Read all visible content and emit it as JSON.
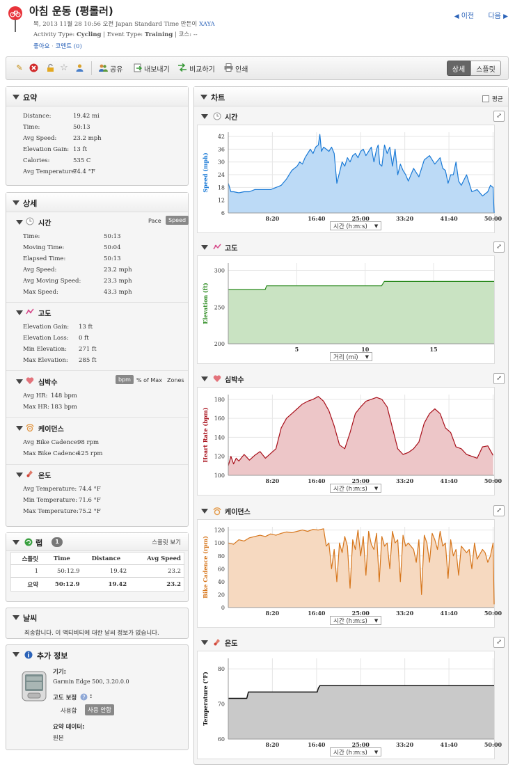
{
  "header": {
    "title": "아침 운동 (평롤러)",
    "date_line": "목, 2013 11월 28 10:56 오전 Japan Standard Time 만든이",
    "author": "XAYA",
    "activity_type_label": "Activity Type:",
    "activity_type": "Cycling",
    "event_type_label": "| Event Type:",
    "event_type": "Training",
    "course_label": "| 코스: --",
    "like": "좋아요",
    "comments": "코멘트 (0)",
    "prev": "이전",
    "next": "다음"
  },
  "toolbar": {
    "share": "공유",
    "export": "내보내기",
    "compare": "비교하기",
    "print": "인쇄",
    "view_detail": "상세",
    "view_splits": "스플릿"
  },
  "summary": {
    "title": "요약",
    "rows": [
      {
        "label": "Distance:",
        "value": "19.42 mi"
      },
      {
        "label": "Time:",
        "value": "50:13"
      },
      {
        "label": "Avg Speed:",
        "value": "23.2 mph"
      },
      {
        "label": "Elevation Gain:",
        "value": "13 ft"
      },
      {
        "label": "Calories:",
        "value": "535 C"
      },
      {
        "label": "Avg Temperature:",
        "value": "74.4 °F"
      }
    ]
  },
  "details": {
    "title": "상세",
    "time": {
      "title": "시간",
      "pace": "Pace",
      "speed": "Speed",
      "rows": [
        {
          "label": "Time:",
          "value": "50:13"
        },
        {
          "label": "Moving Time:",
          "value": "50:04"
        },
        {
          "label": "Elapsed Time:",
          "value": "50:13"
        },
        {
          "label": "Avg Speed:",
          "value": "23.2 mph"
        },
        {
          "label": "Avg Moving Speed:",
          "value": "23.3 mph"
        },
        {
          "label": "Max Speed:",
          "value": "43.3 mph"
        }
      ]
    },
    "elevation": {
      "title": "고도",
      "rows": [
        {
          "label": "Elevation Gain:",
          "value": "13 ft"
        },
        {
          "label": "Elevation Loss:",
          "value": "0 ft"
        },
        {
          "label": "Min Elevation:",
          "value": "271 ft"
        },
        {
          "label": "Max Elevation:",
          "value": "285 ft"
        }
      ]
    },
    "heart": {
      "title": "심박수",
      "bpm": "bpm",
      "pct_max": "% of Max",
      "zones": "Zones",
      "rows": [
        {
          "label": "Avg HR:",
          "value": "148 bpm"
        },
        {
          "label": "Max HR:",
          "value": "183 bpm"
        }
      ]
    },
    "cadence": {
      "title": "케이던스",
      "rows": [
        {
          "label": "Avg Bike Cadence:",
          "value": "98 rpm"
        },
        {
          "label": "Max Bike Cadence:",
          "value": "125 rpm"
        }
      ]
    },
    "temperature": {
      "title": "온도",
      "rows": [
        {
          "label": "Avg Temperature:",
          "value": "74.4 °F"
        },
        {
          "label": "Min Temperature:",
          "value": "71.6 °F"
        },
        {
          "label": "Max Temperature:",
          "value": "75.2 °F"
        }
      ]
    }
  },
  "laps": {
    "title": "랩",
    "count": "1",
    "split_view": "스플릿 보기",
    "columns": [
      "스플릿",
      "Time",
      "Distance",
      "Avg Speed"
    ],
    "rows": [
      [
        "1",
        "50:12.9",
        "19.42",
        "23.2"
      ]
    ],
    "summary": [
      "요약",
      "50:12.9",
      "19.42",
      "23.2"
    ]
  },
  "weather": {
    "title": "날씨",
    "message": "죄송합니다. 이 액티비티에 대한 날씨 정보가 없습니다."
  },
  "extra": {
    "title": "추가 정보",
    "device_label": "기기:",
    "device": "Garmin Edge 500, 3.20.0.0",
    "elev_corr_label": "고도 보정",
    "colon": ":",
    "use": "사용함",
    "not_use": "사용 안함",
    "summary_data_label": "요약 데이터:",
    "summary_data": "원본"
  },
  "charts": {
    "title": "차트",
    "average": "평균",
    "colors": {
      "speed": "#1a7ad6",
      "elevation": "#2a8a1e",
      "heart": "#a80f1a",
      "cadence": "#d6751a",
      "temperature": "#111111"
    }
  },
  "chart_data": [
    {
      "type": "area",
      "title": "시간",
      "ylabel": "Speed (mph)",
      "x_selector": "시간 (h:m:s)",
      "xticks": [
        "8:20",
        "16:40",
        "25:00",
        "33:20",
        "41:40",
        "50:00"
      ],
      "xtick_values": [
        8.33,
        16.67,
        25,
        33.33,
        41.67,
        50
      ],
      "xlim": [
        0,
        50.2
      ],
      "yticks": [
        6,
        12,
        18,
        24,
        30,
        36,
        42
      ],
      "ylim": [
        6,
        44
      ],
      "x": [
        0,
        0.5,
        1,
        2,
        3,
        4,
        5,
        6,
        7,
        8,
        9,
        10,
        11,
        12,
        13,
        13.5,
        14,
        14.5,
        15,
        15.5,
        16,
        16.5,
        17,
        17.3,
        17.6,
        18,
        18.5,
        19,
        19.5,
        20,
        20.5,
        21,
        21.5,
        22,
        22.5,
        23,
        23.5,
        24,
        24.5,
        25,
        25.5,
        26,
        26.5,
        27,
        27.5,
        28,
        28.3,
        28.6,
        29,
        29.5,
        30,
        30.5,
        31,
        31.5,
        32,
        32.5,
        33,
        33.5,
        34,
        35,
        36,
        37,
        38,
        39,
        40,
        40.5,
        41,
        41.5,
        42,
        42.5,
        43,
        43.5,
        44,
        45,
        46,
        47,
        48,
        49,
        49.5,
        50,
        50.2
      ],
      "values": [
        20,
        16,
        16,
        15.5,
        16,
        16,
        17,
        17,
        17,
        17,
        18,
        19,
        22,
        26,
        28,
        30,
        29,
        32,
        34,
        36,
        34,
        37,
        38,
        43,
        35,
        37,
        36,
        35,
        37,
        34,
        20,
        25,
        30,
        28,
        32,
        30,
        33,
        34,
        32,
        35,
        36,
        33,
        35,
        37,
        30,
        36,
        38,
        29,
        28,
        38,
        34,
        37,
        28,
        36,
        24,
        29,
        26,
        24,
        21,
        27,
        23,
        31,
        33,
        29,
        32,
        27,
        26,
        20,
        24,
        24,
        30,
        21,
        19,
        24,
        16,
        17,
        14,
        16,
        19,
        18,
        6
      ]
    },
    {
      "type": "area",
      "title": "고도",
      "ylabel": "Elevation (ft)",
      "x_selector": "거리 (mi)",
      "xticks": [
        "5",
        "10",
        "15"
      ],
      "xtick_values": [
        5,
        10,
        15
      ],
      "xlim": [
        0,
        19.42
      ],
      "yticks": [
        200,
        250,
        300
      ],
      "ylim": [
        200,
        310
      ],
      "x": [
        0,
        2.7,
        2.8,
        11.2,
        11.4,
        19.42
      ],
      "values": [
        274,
        274,
        279,
        279,
        285,
        285
      ]
    },
    {
      "type": "area",
      "title": "심박수",
      "ylabel": "Heart Rate (bpm)",
      "x_selector": "시간 (h:m:s)",
      "xticks": [
        "8:20",
        "16:40",
        "25:00",
        "33:20",
        "41:40",
        "50:00"
      ],
      "xtick_values": [
        8.33,
        16.67,
        25,
        33.33,
        41.67,
        50
      ],
      "xlim": [
        0,
        50.2
      ],
      "yticks": [
        100,
        120,
        140,
        160,
        180
      ],
      "ylim": [
        100,
        185
      ],
      "x": [
        0,
        0.5,
        1,
        1.5,
        2,
        3,
        4,
        5,
        6,
        7,
        8,
        9,
        10,
        11,
        12,
        13,
        14,
        15,
        16,
        17,
        18,
        19,
        20,
        21,
        22,
        23,
        24,
        25,
        26,
        27,
        28,
        29,
        30,
        31,
        32,
        33,
        34,
        35,
        36,
        37,
        38,
        39,
        40,
        41,
        42,
        43,
        44,
        45,
        46,
        47,
        48,
        49,
        50
      ],
      "values": [
        110,
        120,
        112,
        118,
        115,
        122,
        116,
        121,
        125,
        118,
        123,
        128,
        150,
        160,
        165,
        170,
        175,
        178,
        180,
        183,
        178,
        168,
        152,
        132,
        128,
        145,
        165,
        172,
        178,
        180,
        182,
        180,
        172,
        150,
        128,
        122,
        124,
        128,
        135,
        155,
        165,
        170,
        165,
        150,
        145,
        130,
        128,
        122,
        120,
        118,
        130,
        131,
        121
      ]
    },
    {
      "type": "area",
      "title": "케이던스",
      "ylabel": "Bike Cadence (rpm)",
      "x_selector": "시간 (h:m:s)",
      "xticks": [
        "8:20",
        "16:40",
        "25:00",
        "33:20",
        "41:40",
        "50:00"
      ],
      "xtick_values": [
        8.33,
        16.67,
        25,
        33.33,
        41.67,
        50
      ],
      "xlim": [
        0,
        50.2
      ],
      "yticks": [
        0,
        20,
        40,
        60,
        80,
        100,
        120
      ],
      "ylim": [
        0,
        125
      ],
      "x": [
        0,
        1,
        2,
        3,
        4,
        5,
        6,
        7,
        8,
        9,
        10,
        11,
        12,
        13,
        14,
        15,
        16,
        17,
        18,
        18.5,
        19,
        19.5,
        20,
        20.5,
        21,
        21.5,
        22,
        22.5,
        23,
        23.5,
        24,
        24.5,
        25,
        25.5,
        26,
        26.5,
        27,
        27.5,
        28,
        28.5,
        29,
        29.5,
        30,
        30.5,
        31,
        31.5,
        32,
        32.5,
        33,
        33.5,
        34,
        35,
        35.5,
        36,
        36.5,
        37,
        37.5,
        38,
        38.5,
        39,
        39.5,
        40,
        40.5,
        41,
        41.5,
        42,
        42.5,
        43,
        43.5,
        44,
        45,
        45.5,
        46,
        46.5,
        47,
        48,
        48.5,
        49,
        49.5,
        50,
        50.2
      ],
      "values": [
        100,
        98,
        105,
        103,
        108,
        110,
        112,
        110,
        114,
        112,
        115,
        117,
        116,
        118,
        120,
        118,
        121,
        120,
        122,
        95,
        100,
        60,
        90,
        40,
        100,
        85,
        110,
        95,
        30,
        105,
        90,
        120,
        80,
        110,
        50,
        118,
        98,
        90,
        115,
        40,
        110,
        95,
        100,
        60,
        118,
        100,
        105,
        40,
        112,
        95,
        100,
        90,
        70,
        105,
        20,
        112,
        100,
        70,
        115,
        105,
        90,
        118,
        95,
        100,
        45,
        105,
        80,
        90,
        50,
        95,
        85,
        90,
        60,
        100,
        75,
        90,
        85,
        70,
        80,
        100,
        5
      ]
    },
    {
      "type": "area",
      "title": "온도",
      "ylabel": "Temperature (°F)",
      "x_selector": "시간 (h:m:s)",
      "xticks": [
        "8:20",
        "16:40",
        "25:00",
        "33:20",
        "41:40",
        "50:00"
      ],
      "xtick_values": [
        8.33,
        16.67,
        25,
        33.33,
        41.67,
        50
      ],
      "xlim": [
        0,
        50.2
      ],
      "yticks": [
        60,
        70,
        80
      ],
      "ylim": [
        60,
        83
      ],
      "x": [
        0,
        3.5,
        3.8,
        16.8,
        17,
        17.3,
        50.2
      ],
      "values": [
        71.6,
        71.6,
        73.4,
        73.4,
        74.5,
        75.2,
        75.2
      ]
    }
  ]
}
